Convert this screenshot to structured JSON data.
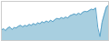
{
  "chart_data": {
    "type": "area",
    "series": [
      {
        "type": "area",
        "color": "#a8cfe0",
        "values": [
          100,
          105,
          98,
          108,
          112,
          102,
          110,
          108,
          115,
          118,
          112,
          118,
          115,
          122,
          118,
          125,
          120,
          128,
          124,
          132,
          128,
          135,
          130,
          138,
          132,
          140,
          145,
          142,
          148,
          144,
          150,
          146,
          155,
          158,
          162,
          158,
          165,
          160,
          168,
          172,
          170,
          175,
          180,
          178,
          185,
          110,
          75,
          130,
          160,
          188,
          195
        ]
      },
      {
        "type": "line",
        "color": "#5ba3c9",
        "values": [
          100,
          105,
          98,
          108,
          112,
          102,
          110,
          108,
          115,
          118,
          112,
          118,
          115,
          122,
          118,
          125,
          120,
          128,
          124,
          132,
          128,
          135,
          130,
          138,
          132,
          140,
          145,
          142,
          148,
          144,
          150,
          146,
          155,
          158,
          162,
          158,
          165,
          160,
          168,
          172,
          170,
          175,
          180,
          178,
          185,
          110,
          75,
          130,
          160,
          188,
          195
        ]
      }
    ],
    "ylim": [
      60,
      210
    ],
    "grid": false,
    "tick_labels": false
  }
}
